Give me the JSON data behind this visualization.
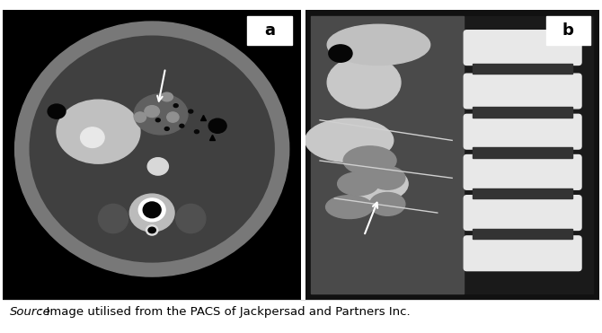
{
  "figure_width": 6.7,
  "figure_height": 3.71,
  "dpi": 100,
  "background_color": "#ffffff",
  "panel_a_label": "a",
  "panel_b_label": "b",
  "caption_text": "Image utilised from the PACS of Jackpersad and Partners Inc.",
  "caption_italic_part": "Source",
  "label_fontsize": 13,
  "caption_fontsize": 9.5
}
